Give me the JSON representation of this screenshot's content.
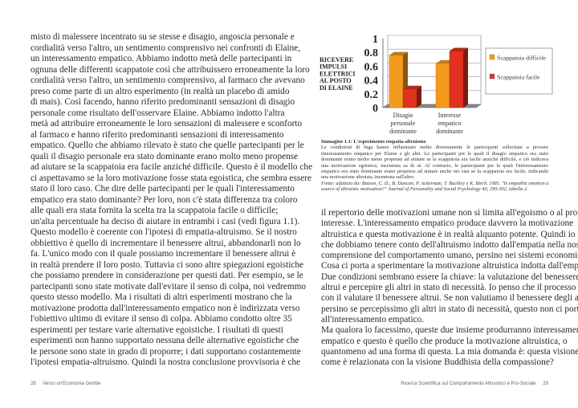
{
  "left_page": {
    "page_number": "28",
    "running_title": "Verso un'Economia Gentile",
    "lines": [
      "misto di malessere incentrato su se stesse e disagio, angoscia personale e",
      "cordialità verso l'altro, un sentimento comprensivo nei confronti di Elaine,",
      "un interessamento empatico. Abbiamo indotto metà delle partecipanti in",
      "ognuna delle differenti scappatoie così che attribuissero erroneamente la loro",
      "cordialità verso l'altro, un sentimento comprensivo, al farmaco che avevano",
      "preso come parte di un altro esperimento (in realtà un placebo di amido",
      "di mais). Così facendo, hanno riferito predominanti sensazioni di disagio",
      "personale come risultato dell'osservare Elaine. Abbiamo indotto l'altra",
      "metà ad attribuire erroneamente le loro sensazioni di malessere e sconforto",
      "al farmaco e hanno riferito predominanti sensazioni di interessamento",
      "empatico. Quello che abbiamo rilevato è stato che quelle partecipanti per le",
      "quali il disagio personale era stato dominante erano molto meno propense",
      "ad aiutare se la scappatoia era facile anziché difficile. Questo è il modello che",
      "ci aspettavamo se la loro motivazione fosse stata egoistica, che sembra essere",
      "stato il loro caso. Che dire delle partecipanti per le quali l'interessamento",
      "empatico era stato dominante? Per loro, non c'è stata differenza tra coloro",
      "alle quali era stata fornita la scelta tra la scappatoia facile o difficile;",
      "un'alta percentuale ha deciso di aiutare in entrambi i casi (vedi figura 1.1).",
      "Questo modello è coerente con l'ipotesi di empatia-altruismo. Se il nostro",
      "obbiettivo è quello di incrementare il benessere altrui, abbandonarli non lo",
      "fa. L'unico modo con il quale possiamo incrementare il benessere altrui è",
      "in realtà prendere il loro posto. Tuttavia ci sono altre spiegazioni egoistiche",
      "che possiamo prendere in considerazione per questi dati. Per esempio, se le",
      "partecipanti sono state motivate dall'evitare il senso di colpa, noi vedremmo",
      "questo stesso modello. Ma i risultati di altri esperimenti mostrano che la",
      "motivazione prodotta dall'interessamento empatico non è indirizzata verso",
      "l'obiettivo ultimo di evitare il senso di colpa. Abbiamo condotto oltre 35",
      "esperimenti per testare varie alternative egoistiche. I risultati di questi",
      "esperimenti non hanno supportato nessuna delle alternative egoistiche che",
      "le persone sono state in grado di proporre; i dati supportano costantemente",
      "l'ipotesi empatia-altruismo. Quindi la nostra conclusione provvisoria è che"
    ]
  },
  "right_page": {
    "page_number": "29",
    "running_title": "Ricerca Scientifica sul Comportamento Altruistico e Pro-Sociale",
    "lines": [
      "il repertorio delle motivazioni umane non si limita all'egoismo o al proprio",
      "interesse. L'interessamento empatico produce davvero la motivazione",
      "altruistica e questa motivazione è in realtà alquanto potente. Quindi io credo",
      "che dobbiamo tenere conto dell'altruismo indotto dall'empatia nella nostra",
      "comprensione del comportamento umano, persino nei sistemi economici.",
      "Cosa ci porta a sperimentare la motivazione altruistica indotta dall'empatia?",
      "Due condizioni sembrano essere la chiave: la valutazione del benessere",
      "altrui e percepire gli altri in stato di necessità. Io penso che il processo inizi",
      "con il valutare il benessere altrui. Se non valutiamo il benessere degli altri,",
      "persino se percepissimo gli altri in stato di necessità, questo non ci porterà",
      "all'interessamento empatico.",
      "Ma qualora lo facessimo, queste due insieme produrranno interessamento",
      "empatico e questo è quello che produce la motivazione altruistica, o",
      "quantomeno ad una forma di questa. La mia domanda è: questa visione",
      "come è relazionata con la visione Buddhista della compassione?"
    ],
    "paragraph_end_lines": [
      4,
      10,
      14
    ]
  },
  "figure": {
    "caption_title": "Immagine 1.1: L'esperimento empatia-altruismo",
    "caption_lines": [
      "Le condizioni di fuga hanno influenzato molto diversamente le partecipanti sollecitate a provare",
      "interessamento empatico per Elaine e gli altri. Le partecipanti per le quali il disagio empatico era stato",
      "dominante erano molto meno propense ad aiutare se la scappatoia era facile anziché difficile, e ciò indicava",
      "una motivazione egoistica, incentrata su di sé. Al contrario, le partecipanti per le quali l'interessamento",
      "empatico era stato dominante erano propense ad aiutare anche nei casi se la scappatoia era facile, indicando",
      "una motivazione altruista, incentrata sull'altro."
    ],
    "source_lines": [
      "Fonte: adattato da: Batson, C. D., B. Duncan, P. Ackerman, T. Buckley e K. Birch. 1981. \"Is empathic emotion a",
      "source of altruistic motivation?\" Journal of Personality and Social Psychology 40, 290-302, tabella 2."
    ]
  },
  "chart_data": {
    "type": "bar",
    "style": "3d-clustered",
    "ylabel_lines": [
      "RICEVERE",
      "IMPULSI",
      "ELETTRICI",
      "AL POSTO",
      "DI ELAINE"
    ],
    "ylim": [
      0,
      1
    ],
    "yticks": [
      "0",
      "0.2",
      "0.4",
      "0.6",
      "0.8",
      "1"
    ],
    "categories": [
      [
        "Disagio",
        "personale",
        "dominante"
      ],
      [
        "Interesse",
        "empatico",
        "dominante"
      ]
    ],
    "series": [
      {
        "name": "Scappatoia difficile",
        "values": [
          0.76,
          0.64
        ],
        "color": "#f39a1e"
      },
      {
        "name": "Scappatoia facile",
        "values": [
          0.27,
          0.82
        ],
        "color": "#e2321f"
      }
    ],
    "grid": true,
    "legend_position": "right"
  }
}
